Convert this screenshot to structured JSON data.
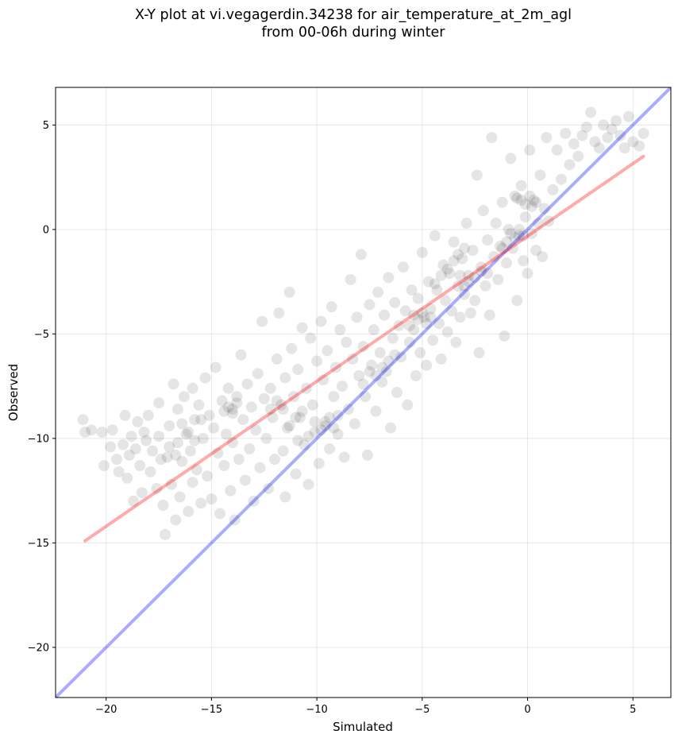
{
  "chart_data": {
    "type": "scatter",
    "title": "X-Y plot at vi.vegagerdin.34238 for air_temperature_at_2m_agl",
    "subtitle": "from 00-06h during winter",
    "xlabel": "Simulated",
    "ylabel": "Observed",
    "xlim": [
      -22.4,
      6.8
    ],
    "ylim": [
      -22.4,
      6.8
    ],
    "x_ticks": [
      -20,
      -15,
      -10,
      -5,
      0,
      5
    ],
    "y_ticks": [
      -20,
      -15,
      -10,
      -5,
      0,
      5
    ],
    "x_tick_labels": [
      "−20",
      "−15",
      "−10",
      "−5",
      "0",
      "5"
    ],
    "y_tick_labels": [
      "−20",
      "−15",
      "−10",
      "−5",
      "0",
      "5"
    ],
    "grid": true,
    "point_color": "#000000",
    "point_opacity": 0.1,
    "one_to_one_line": {
      "x": [
        -22.4,
        6.8
      ],
      "y": [
        -22.4,
        6.8
      ],
      "color": "#0000ff",
      "opacity": 0.33
    },
    "regression_line": {
      "x": [
        -21.0,
        5.5
      ],
      "y": [
        -14.9,
        3.5
      ],
      "color": "#ff0000",
      "opacity": 0.33
    },
    "points": [
      [
        -21.1,
        -9.1
      ],
      [
        -21.0,
        -9.7
      ],
      [
        -20.7,
        -9.6
      ],
      [
        -20.2,
        -9.7
      ],
      [
        -20.1,
        -11.3
      ],
      [
        -19.8,
        -10.4
      ],
      [
        -19.7,
        -9.6
      ],
      [
        -19.5,
        -11.0
      ],
      [
        -19.4,
        -11.6
      ],
      [
        -19.2,
        -10.3
      ],
      [
        -19.1,
        -8.9
      ],
      [
        -19.0,
        -11.9
      ],
      [
        -18.9,
        -10.8
      ],
      [
        -18.8,
        -9.9
      ],
      [
        -18.7,
        -13.0
      ],
      [
        -18.6,
        -10.5
      ],
      [
        -18.5,
        -9.2
      ],
      [
        -18.4,
        -11.3
      ],
      [
        -18.3,
        -12.6
      ],
      [
        -18.2,
        -9.7
      ],
      [
        -18.1,
        -10.1
      ],
      [
        -18.0,
        -8.9
      ],
      [
        -17.9,
        -11.6
      ],
      [
        -17.8,
        -10.6
      ],
      [
        -17.6,
        -12.4
      ],
      [
        -17.5,
        -9.9
      ],
      [
        -17.5,
        -8.3
      ],
      [
        -17.4,
        -11.0
      ],
      [
        -17.3,
        -13.2
      ],
      [
        -17.2,
        -14.6
      ],
      [
        -17.1,
        -10.9
      ],
      [
        -17.0,
        -9.4
      ],
      [
        -16.9,
        -12.2
      ],
      [
        -16.8,
        -7.4
      ],
      [
        -16.7,
        -13.9
      ],
      [
        -16.6,
        -8.6
      ],
      [
        -16.6,
        -10.2
      ],
      [
        -16.5,
        -12.8
      ],
      [
        -16.4,
        -11.1
      ],
      [
        -16.3,
        -8.0
      ],
      [
        -16.2,
        -9.8
      ],
      [
        -16.1,
        -13.5
      ],
      [
        -16.0,
        -10.6
      ],
      [
        -15.9,
        -7.6
      ],
      [
        -15.9,
        -12.1
      ],
      [
        -15.8,
        -9.1
      ],
      [
        -15.7,
        -11.5
      ],
      [
        -15.6,
        -8.4
      ],
      [
        -15.5,
        -13.1
      ],
      [
        -15.4,
        -10.0
      ],
      [
        -15.3,
        -7.1
      ],
      [
        -15.2,
        -11.8
      ],
      [
        -15.1,
        -8.9
      ],
      [
        -15.0,
        -12.9
      ],
      [
        -14.9,
        -9.5
      ],
      [
        -14.8,
        -6.6
      ],
      [
        -14.7,
        -10.7
      ],
      [
        -14.6,
        -13.6
      ],
      [
        -14.5,
        -8.2
      ],
      [
        -14.4,
        -11.3
      ],
      [
        -14.3,
        -9.8
      ],
      [
        -14.2,
        -7.6
      ],
      [
        -14.1,
        -12.5
      ],
      [
        -14.0,
        -8.6
      ],
      [
        -14.0,
        -10.2
      ],
      [
        -13.9,
        -13.9
      ],
      [
        -13.8,
        -8.0
      ],
      [
        -13.7,
        -11.0
      ],
      [
        -13.6,
        -6.0
      ],
      [
        -13.5,
        -9.1
      ],
      [
        -13.4,
        -12.0
      ],
      [
        -13.3,
        -7.4
      ],
      [
        -13.2,
        -10.5
      ],
      [
        -13.1,
        -8.5
      ],
      [
        -13.0,
        -13.0
      ],
      [
        -12.9,
        -9.6
      ],
      [
        -12.8,
        -6.9
      ],
      [
        -12.7,
        -11.4
      ],
      [
        -12.6,
        -4.4
      ],
      [
        -12.5,
        -8.1
      ],
      [
        -12.4,
        -10.0
      ],
      [
        -12.3,
        -12.4
      ],
      [
        -12.2,
        -7.6
      ],
      [
        -12.1,
        -9.0
      ],
      [
        -12.0,
        -11.0
      ],
      [
        -11.9,
        -6.2
      ],
      [
        -11.8,
        -4.0
      ],
      [
        -11.7,
        -8.4
      ],
      [
        -11.6,
        -10.6
      ],
      [
        -11.5,
        -12.8
      ],
      [
        -11.5,
        -7.1
      ],
      [
        -11.4,
        -9.5
      ],
      [
        -11.3,
        -3.0
      ],
      [
        -11.2,
        -5.7
      ],
      [
        -11.1,
        -8.0
      ],
      [
        -11.0,
        -11.7
      ],
      [
        -10.9,
        -6.7
      ],
      [
        -10.8,
        -9.0
      ],
      [
        -10.7,
        -4.7
      ],
      [
        -10.6,
        -10.3
      ],
      [
        -10.5,
        -7.6
      ],
      [
        -10.4,
        -12.2
      ],
      [
        -10.3,
        -5.2
      ],
      [
        -10.2,
        -8.4
      ],
      [
        -10.1,
        -9.7
      ],
      [
        -10.0,
        -6.3
      ],
      [
        -9.9,
        -11.2
      ],
      [
        -9.8,
        -4.4
      ],
      [
        -9.7,
        -7.2
      ],
      [
        -9.6,
        -9.2
      ],
      [
        -9.5,
        -5.8
      ],
      [
        -9.4,
        -10.5
      ],
      [
        -9.3,
        -3.7
      ],
      [
        -9.2,
        -8.0
      ],
      [
        -9.1,
        -6.6
      ],
      [
        -9.0,
        -9.8
      ],
      [
        -8.9,
        -4.8
      ],
      [
        -8.8,
        -7.5
      ],
      [
        -8.7,
        -10.9
      ],
      [
        -8.6,
        -5.4
      ],
      [
        -8.5,
        -8.6
      ],
      [
        -8.4,
        -2.4
      ],
      [
        -8.3,
        -6.2
      ],
      [
        -8.2,
        -9.3
      ],
      [
        -8.1,
        -4.2
      ],
      [
        -8.0,
        -7.0
      ],
      [
        -7.9,
        -1.2
      ],
      [
        -7.8,
        -5.6
      ],
      [
        -7.7,
        -8.0
      ],
      [
        -7.6,
        -10.8
      ],
      [
        -7.5,
        -3.6
      ],
      [
        -7.4,
        -6.5
      ],
      [
        -7.3,
        -4.8
      ],
      [
        -7.2,
        -8.7
      ],
      [
        -7.1,
        -3.0
      ],
      [
        -7.0,
        -5.9
      ],
      [
        -6.9,
        -7.3
      ],
      [
        -6.8,
        -4.1
      ],
      [
        -6.7,
        -6.8
      ],
      [
        -6.6,
        -2.3
      ],
      [
        -6.5,
        -9.5
      ],
      [
        -6.4,
        -5.2
      ],
      [
        -6.3,
        -3.5
      ],
      [
        -6.2,
        -7.8
      ],
      [
        -6.1,
        -4.6
      ],
      [
        -6.0,
        -6.1
      ],
      [
        -5.9,
        -1.8
      ],
      [
        -5.8,
        -3.9
      ],
      [
        -5.7,
        -8.4
      ],
      [
        -5.6,
        -5.4
      ],
      [
        -5.5,
        -2.9
      ],
      [
        -5.4,
        -4.8
      ],
      [
        -5.3,
        -7.0
      ],
      [
        -5.2,
        -3.3
      ],
      [
        -5.1,
        -5.9
      ],
      [
        -5.0,
        -1.1
      ],
      [
        -4.9,
        -4.2
      ],
      [
        -4.8,
        -6.5
      ],
      [
        -4.7,
        -2.5
      ],
      [
        -4.6,
        -3.8
      ],
      [
        -4.5,
        -5.3
      ],
      [
        -4.4,
        -0.3
      ],
      [
        -4.3,
        -2.9
      ],
      [
        -4.2,
        -4.5
      ],
      [
        -4.1,
        -6.2
      ],
      [
        -4.0,
        -1.7
      ],
      [
        -3.9,
        -3.4
      ],
      [
        -3.8,
        -4.9
      ],
      [
        -3.7,
        -2.1
      ],
      [
        -3.6,
        -3.9
      ],
      [
        -3.5,
        -0.6
      ],
      [
        -3.4,
        -5.4
      ],
      [
        -3.3,
        -2.7
      ],
      [
        -3.2,
        -4.2
      ],
      [
        -3.1,
        -1.4
      ],
      [
        -3.0,
        -3.1
      ],
      [
        -2.9,
        0.3
      ],
      [
        -2.8,
        -2.2
      ],
      [
        -2.7,
        -4.0
      ],
      [
        -2.6,
        -1.0
      ],
      [
        -2.5,
        -3.4
      ],
      [
        -2.4,
        2.6
      ],
      [
        -2.3,
        -5.9
      ],
      [
        -2.2,
        -1.8
      ],
      [
        -2.1,
        0.9
      ],
      [
        -2.0,
        -2.7
      ],
      [
        -1.9,
        -0.5
      ],
      [
        -1.8,
        -4.1
      ],
      [
        -1.7,
        4.4
      ],
      [
        -1.6,
        -1.3
      ],
      [
        -1.5,
        0.3
      ],
      [
        -1.4,
        -2.4
      ],
      [
        -1.3,
        -0.8
      ],
      [
        -1.2,
        1.3
      ],
      [
        -1.1,
        -5.1
      ],
      [
        -1.0,
        -1.6
      ],
      [
        -0.9,
        0.0
      ],
      [
        -0.8,
        3.4
      ],
      [
        -0.7,
        -0.9
      ],
      [
        -0.6,
        1.6
      ],
      [
        -0.5,
        -3.4
      ],
      [
        -0.4,
        -0.3
      ],
      [
        -0.3,
        2.1
      ],
      [
        -0.2,
        -1.5
      ],
      [
        -0.1,
        0.6
      ],
      [
        0.0,
        -2.1
      ],
      [
        0.1,
        3.8
      ],
      [
        0.2,
        -0.2
      ],
      [
        0.3,
        1.4
      ],
      [
        0.4,
        -1.0
      ],
      [
        0.5,
        0.3
      ],
      [
        0.6,
        2.6
      ],
      [
        0.7,
        -1.3
      ],
      [
        0.8,
        1.0
      ],
      [
        0.9,
        4.4
      ],
      [
        1.0,
        0.4
      ],
      [
        1.2,
        1.9
      ],
      [
        1.4,
        3.8
      ],
      [
        1.6,
        2.4
      ],
      [
        1.8,
        4.6
      ],
      [
        2.0,
        3.1
      ],
      [
        2.2,
        4.1
      ],
      [
        2.4,
        3.5
      ],
      [
        2.6,
        4.5
      ],
      [
        2.8,
        4.9
      ],
      [
        3.0,
        5.6
      ],
      [
        3.2,
        4.2
      ],
      [
        3.4,
        3.9
      ],
      [
        3.6,
        5.0
      ],
      [
        3.8,
        4.4
      ],
      [
        4.0,
        4.8
      ],
      [
        4.2,
        5.2
      ],
      [
        4.4,
        4.5
      ],
      [
        4.6,
        3.9
      ],
      [
        4.8,
        5.4
      ],
      [
        5.0,
        4.2
      ],
      [
        5.3,
        4.0
      ],
      [
        5.5,
        4.6
      ],
      [
        -9.6,
        -9.4
      ],
      [
        -9.4,
        -9.0
      ],
      [
        -9.8,
        -9.6
      ],
      [
        -10.1,
        -9.2
      ],
      [
        -9.2,
        -9.5
      ],
      [
        -9.0,
        -8.9
      ],
      [
        -14.2,
        -8.5
      ],
      [
        -14.0,
        -8.8
      ],
      [
        -13.8,
        -8.3
      ],
      [
        -14.4,
        -8.7
      ],
      [
        -12.2,
        -8.6
      ],
      [
        -11.9,
        -8.2
      ],
      [
        -5.2,
        -4.3
      ],
      [
        -5.0,
        -4.0
      ],
      [
        -4.8,
        -4.5
      ],
      [
        -5.4,
        -4.1
      ],
      [
        -4.6,
        -4.2
      ],
      [
        -5.6,
        -4.6
      ],
      [
        -1.0,
        -0.6
      ],
      [
        -0.8,
        -0.2
      ],
      [
        -0.6,
        -0.4
      ],
      [
        -0.4,
        0.0
      ],
      [
        -0.2,
        -0.3
      ],
      [
        -1.2,
        -0.9
      ],
      [
        -0.3,
        1.4
      ],
      [
        -0.1,
        1.2
      ],
      [
        0.1,
        1.6
      ],
      [
        0.4,
        1.3
      ],
      [
        -0.5,
        1.5
      ],
      [
        0.2,
        1.1
      ],
      [
        -2.5,
        -2.3
      ],
      [
        -2.2,
        -2.0
      ],
      [
        -2.8,
        -2.5
      ],
      [
        -3.0,
        -2.7
      ],
      [
        -1.9,
        -2.1
      ],
      [
        -3.2,
        -2.2
      ],
      [
        -7.2,
        -7.0
      ],
      [
        -6.9,
        -6.6
      ],
      [
        -7.5,
        -6.8
      ],
      [
        -6.6,
        -6.3
      ],
      [
        -7.8,
        -7.4
      ],
      [
        -6.3,
        -6.0
      ],
      [
        -11.0,
        -9.0
      ],
      [
        -10.7,
        -8.7
      ],
      [
        -11.3,
        -9.4
      ],
      [
        -10.4,
        -9.9
      ],
      [
        -11.6,
        -8.6
      ],
      [
        -10.9,
        -10.1
      ],
      [
        -16.1,
        -9.7
      ],
      [
        -15.8,
        -10.1
      ],
      [
        -16.4,
        -9.3
      ],
      [
        -17.0,
        -10.4
      ],
      [
        -15.5,
        -9.1
      ],
      [
        -16.7,
        -10.8
      ],
      [
        -3.8,
        -1.9
      ],
      [
        -3.5,
        -1.5
      ],
      [
        -4.1,
        -2.2
      ],
      [
        -3.3,
        -1.2
      ],
      [
        -4.4,
        -2.6
      ],
      [
        -3.0,
        -0.9
      ]
    ]
  }
}
